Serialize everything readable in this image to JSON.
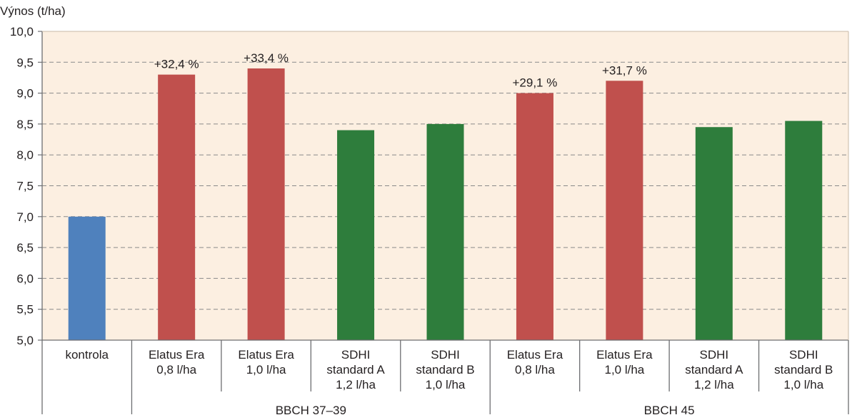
{
  "chart_data": {
    "type": "bar",
    "ylabel": "Výnos (t/ha)",
    "ylim": [
      5.0,
      10.0
    ],
    "yticks": [
      "5,0",
      "5,5",
      "6,0",
      "6,5",
      "7,0",
      "7,5",
      "8,0",
      "8,5",
      "9,0",
      "9,5",
      "10,0"
    ],
    "grid": true,
    "categories": [
      [
        "kontrola"
      ],
      [
        "Elatus Era",
        "0,8 l/ha"
      ],
      [
        "Elatus Era",
        "1,0 l/ha"
      ],
      [
        "SDHI",
        "standard A",
        "1,2 l/ha"
      ],
      [
        "SDHI",
        "standard B",
        "1,0 l/ha"
      ],
      [
        "Elatus Era",
        "0,8 l/ha"
      ],
      [
        "Elatus Era",
        "1,0 l/ha"
      ],
      [
        "SDHI",
        "standard A",
        "1,2 l/ha"
      ],
      [
        "SDHI",
        "standard B",
        "1,0 l/ha"
      ]
    ],
    "values": [
      7.0,
      9.3,
      9.4,
      8.4,
      8.5,
      9.0,
      9.2,
      8.45,
      8.55
    ],
    "annotations": [
      "",
      "+32,4 %",
      "+33,4 %",
      "",
      "",
      "+29,1 %",
      "+31,7 %",
      "",
      ""
    ],
    "bar_colors": [
      "#4f81bd",
      "#c0504d",
      "#c0504d",
      "#2e7d3c",
      "#2e7d3c",
      "#c0504d",
      "#c0504d",
      "#2e7d3c",
      "#2e7d3c"
    ],
    "groups": [
      {
        "label": "BBCH 37–39",
        "start": 1,
        "end": 4
      },
      {
        "label": "BBCH 45",
        "start": 5,
        "end": 8
      }
    ],
    "colors": {
      "plot_background": "#fcefe1",
      "grid": "#8a8a8a",
      "axis": "#6d6e71"
    }
  }
}
